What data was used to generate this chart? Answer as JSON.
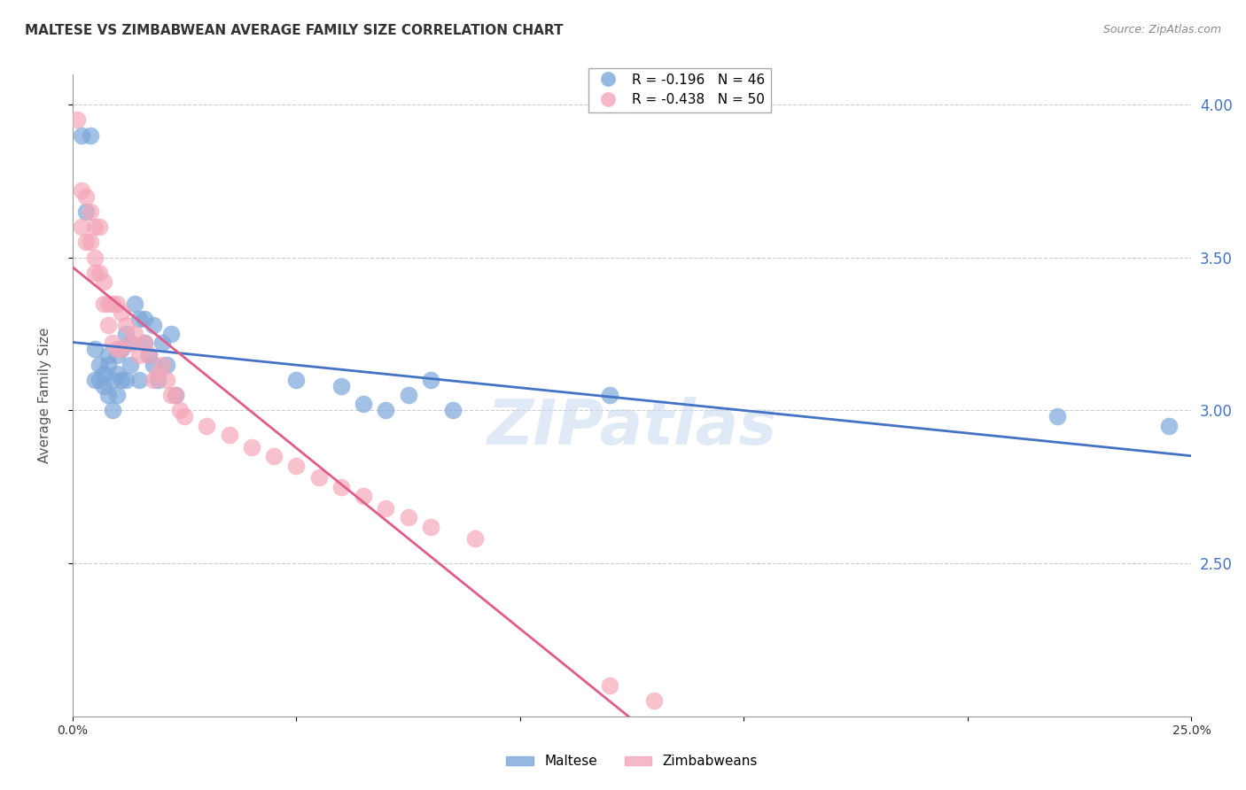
{
  "title": "MALTESE VS ZIMBABWEAN AVERAGE FAMILY SIZE CORRELATION CHART",
  "source": "Source: ZipAtlas.com",
  "xlabel": "",
  "ylabel": "Average Family Size",
  "xmin": 0.0,
  "xmax": 0.25,
  "ymin": 2.0,
  "ymax": 4.1,
  "yticks": [
    2.5,
    3.0,
    3.5,
    4.0
  ],
  "xticks": [
    0.0,
    0.05,
    0.1,
    0.15,
    0.2,
    0.25
  ],
  "xtick_labels": [
    "0.0%",
    "",
    "",
    "",
    "",
    "25.0%"
  ],
  "right_ytick_color": "#4472c4",
  "maltese_color": "#7da7d9",
  "zimbabwean_color": "#f4a7b9",
  "maltese_line_color": "#4472c4",
  "zimbabwean_line_color": "#e05c8a",
  "maltese_R": -0.196,
  "maltese_N": 46,
  "zimbabwean_R": -0.438,
  "zimbabwean_N": 50,
  "legend_maltese": "Maltese",
  "legend_zimbabwean": "Zimbabweans",
  "maltese_x": [
    0.002,
    0.003,
    0.004,
    0.005,
    0.005,
    0.006,
    0.006,
    0.007,
    0.007,
    0.008,
    0.008,
    0.008,
    0.009,
    0.009,
    0.01,
    0.01,
    0.01,
    0.011,
    0.011,
    0.012,
    0.012,
    0.013,
    0.013,
    0.014,
    0.015,
    0.015,
    0.016,
    0.016,
    0.017,
    0.018,
    0.018,
    0.019,
    0.02,
    0.021,
    0.022,
    0.023,
    0.05,
    0.06,
    0.065,
    0.07,
    0.075,
    0.08,
    0.085,
    0.12,
    0.22,
    0.245
  ],
  "maltese_y": [
    3.9,
    3.65,
    3.9,
    3.2,
    3.1,
    3.15,
    3.1,
    3.12,
    3.08,
    3.18,
    3.15,
    3.05,
    3.1,
    3.0,
    3.18,
    3.12,
    3.05,
    3.2,
    3.1,
    3.25,
    3.1,
    3.22,
    3.15,
    3.35,
    3.3,
    3.1,
    3.3,
    3.22,
    3.18,
    3.28,
    3.15,
    3.1,
    3.22,
    3.15,
    3.25,
    3.05,
    3.1,
    3.08,
    3.02,
    3.0,
    3.05,
    3.1,
    3.0,
    3.05,
    2.98,
    2.95
  ],
  "zimbabwean_x": [
    0.001,
    0.002,
    0.002,
    0.003,
    0.003,
    0.004,
    0.004,
    0.005,
    0.005,
    0.005,
    0.006,
    0.006,
    0.007,
    0.007,
    0.008,
    0.008,
    0.009,
    0.009,
    0.01,
    0.01,
    0.011,
    0.011,
    0.012,
    0.013,
    0.014,
    0.015,
    0.016,
    0.017,
    0.018,
    0.019,
    0.02,
    0.021,
    0.022,
    0.023,
    0.024,
    0.025,
    0.03,
    0.035,
    0.04,
    0.045,
    0.05,
    0.055,
    0.06,
    0.065,
    0.07,
    0.075,
    0.08,
    0.09,
    0.12,
    0.13
  ],
  "zimbabwean_y": [
    3.95,
    3.72,
    3.6,
    3.7,
    3.55,
    3.65,
    3.55,
    3.6,
    3.5,
    3.45,
    3.6,
    3.45,
    3.42,
    3.35,
    3.35,
    3.28,
    3.35,
    3.22,
    3.35,
    3.2,
    3.32,
    3.2,
    3.28,
    3.22,
    3.25,
    3.18,
    3.22,
    3.18,
    3.1,
    3.12,
    3.15,
    3.1,
    3.05,
    3.05,
    3.0,
    2.98,
    2.95,
    2.92,
    2.88,
    2.85,
    2.82,
    2.78,
    2.75,
    2.72,
    2.68,
    2.65,
    2.62,
    2.58,
    2.1,
    2.05
  ],
  "background_color": "#ffffff",
  "grid_color": "#cccccc",
  "watermark": "ZIPatlas",
  "title_fontsize": 11,
  "axis_label_fontsize": 11,
  "tick_fontsize": 10
}
